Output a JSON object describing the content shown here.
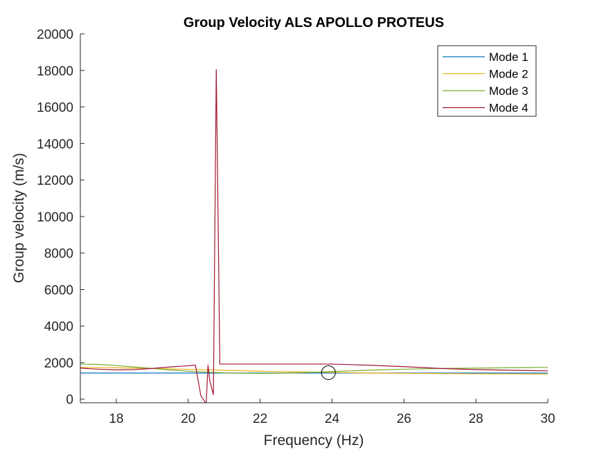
{
  "chart_data": {
    "type": "line",
    "title": "Group Velocity ALS APOLLO PROTEUS",
    "xlabel": "Frequency (Hz)",
    "ylabel": "Group velocity (m/s)",
    "xlim": [
      17,
      30
    ],
    "ylim": [
      -200,
      20000
    ],
    "xticks": [
      18,
      20,
      22,
      24,
      26,
      28,
      30
    ],
    "yticks": [
      0,
      2000,
      4000,
      6000,
      8000,
      10000,
      12000,
      14000,
      16000,
      18000,
      20000
    ],
    "grid": false,
    "legend_position": "top-right",
    "series": [
      {
        "name": "Mode 1",
        "color": "#0072BD",
        "x": [
          17,
          18,
          19,
          20,
          21,
          22,
          23,
          24,
          25,
          26,
          27,
          28,
          29,
          30
        ],
        "y": [
          1430,
          1430,
          1430,
          1430,
          1430,
          1430,
          1430,
          1430,
          1430,
          1430,
          1430,
          1430,
          1430,
          1430
        ]
      },
      {
        "name": "Mode 2",
        "color": "#EDB120",
        "x": [
          17,
          18,
          19,
          20,
          21,
          22,
          23,
          24,
          25,
          26,
          27,
          28,
          29,
          30
        ],
        "y": [
          1740,
          1720,
          1680,
          1630,
          1580,
          1530,
          1490,
          1460,
          1430,
          1410,
          1400,
          1390,
          1380,
          1370
        ]
      },
      {
        "name": "Mode 3",
        "color": "#77AC30",
        "x": [
          17,
          17.5,
          18,
          18.5,
          19,
          19.5,
          20,
          20.5,
          21,
          21.5,
          22,
          22.5,
          23,
          23.5,
          24,
          25,
          26,
          27,
          28,
          29,
          30
        ],
        "y": [
          1920,
          1900,
          1840,
          1760,
          1680,
          1600,
          1530,
          1480,
          1440,
          1420,
          1410,
          1420,
          1440,
          1470,
          1510,
          1580,
          1640,
          1680,
          1700,
          1720,
          1740
        ]
      },
      {
        "name": "Mode 4",
        "color": "#A2142F",
        "x": [
          17,
          17.5,
          18,
          18.5,
          19,
          19.5,
          20,
          20.2,
          20.35,
          20.5,
          20.55,
          20.6,
          20.7,
          20.78,
          20.88,
          21,
          22,
          23,
          24,
          25,
          26,
          27,
          28,
          29,
          30
        ],
        "y": [
          1700,
          1640,
          1600,
          1620,
          1680,
          1760,
          1830,
          1860,
          200,
          -250,
          1860,
          1000,
          250,
          18050,
          1920,
          1920,
          1920,
          1920,
          1920,
          1860,
          1780,
          1680,
          1620,
          1580,
          1550
        ]
      }
    ],
    "annotations": [
      {
        "type": "circle-marker",
        "x": 23.9,
        "y": 1450
      }
    ]
  }
}
